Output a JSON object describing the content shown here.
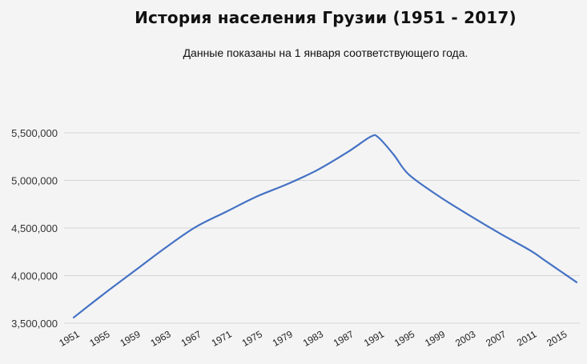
{
  "title": "История населения Грузии (1951 - 2017)",
  "subtitle": "Данные показаны на 1 января соответствующего года.",
  "colors": {
    "background": "#f4f4f4",
    "line": "#4472c4",
    "grid": "#d4d4d4"
  },
  "chart_data": {
    "type": "line",
    "title": "История населения Грузии (1951 - 2017)",
    "subtitle": "Данные показаны на 1 января соответствующего года.",
    "xlabel": "",
    "ylabel": "",
    "ylim": [
      3500000,
      5500000
    ],
    "grid": true,
    "legend": "none",
    "y_ticks": [
      {
        "value": 3500000,
        "label": "3,500,000"
      },
      {
        "value": 4000000,
        "label": "4,000,000"
      },
      {
        "value": 4500000,
        "label": "4,500,000"
      },
      {
        "value": 5000000,
        "label": "5,000,000"
      },
      {
        "value": 5500000,
        "label": "5,500,000"
      }
    ],
    "x_ticks": [
      "1951",
      "1955",
      "1959",
      "1963",
      "1967",
      "1971",
      "1975",
      "1979",
      "1983",
      "1987",
      "1991",
      "1995",
      "1999",
      "2003",
      "2007",
      "2011",
      "2015"
    ],
    "x": [
      1951,
      1955,
      1959,
      1963,
      1967,
      1971,
      1975,
      1979,
      1983,
      1987,
      1990,
      1991,
      1993,
      1995,
      1999,
      2003,
      2007,
      2011,
      2013,
      2015,
      2017
    ],
    "values": [
      3560000,
      3810000,
      4050000,
      4290000,
      4510000,
      4670000,
      4830000,
      4960000,
      5110000,
      5300000,
      5460000,
      5450000,
      5270000,
      5060000,
      4830000,
      4630000,
      4440000,
      4260000,
      4150000,
      4040000,
      3930000
    ]
  }
}
